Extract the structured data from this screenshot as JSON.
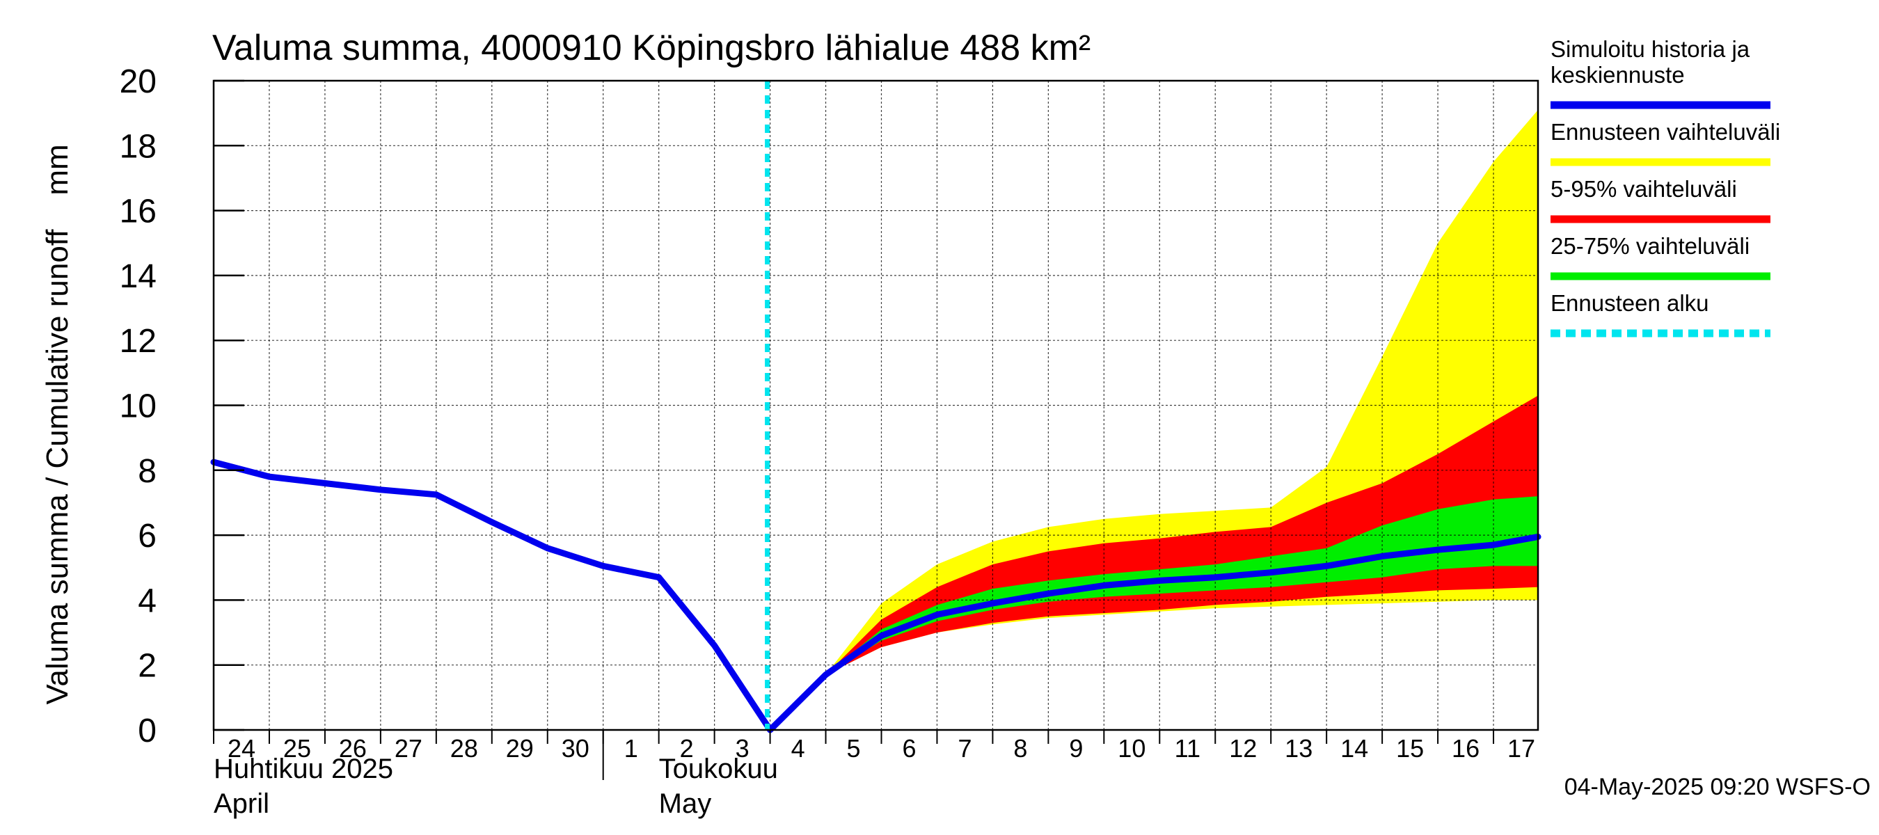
{
  "chart_data": {
    "type": "area",
    "title": "Valuma summa, 4000910 Köpingsbro lähialue 488 km²",
    "ylabel": "Valuma summa / Cumulative runoff    mm",
    "ylim": [
      0,
      20
    ],
    "yticks": [
      0,
      2,
      4,
      6,
      8,
      10,
      12,
      14,
      16,
      18,
      20
    ],
    "x_day_range": [
      0,
      23.8
    ],
    "x_ticks": [
      {
        "day": 0,
        "label": "24"
      },
      {
        "day": 1,
        "label": "25"
      },
      {
        "day": 2,
        "label": "26"
      },
      {
        "day": 3,
        "label": "27"
      },
      {
        "day": 4,
        "label": "28"
      },
      {
        "day": 5,
        "label": "29"
      },
      {
        "day": 6,
        "label": "30"
      },
      {
        "day": 7,
        "label": "1"
      },
      {
        "day": 8,
        "label": "2"
      },
      {
        "day": 9,
        "label": "3"
      },
      {
        "day": 10,
        "label": "4"
      },
      {
        "day": 11,
        "label": "5"
      },
      {
        "day": 12,
        "label": "6"
      },
      {
        "day": 13,
        "label": "7"
      },
      {
        "day": 14,
        "label": "8"
      },
      {
        "day": 15,
        "label": "9"
      },
      {
        "day": 16,
        "label": "10"
      },
      {
        "day": 17,
        "label": "11"
      },
      {
        "day": 18,
        "label": "12"
      },
      {
        "day": 19,
        "label": "13"
      },
      {
        "day": 20,
        "label": "14"
      },
      {
        "day": 21,
        "label": "15"
      },
      {
        "day": 22,
        "label": "16"
      },
      {
        "day": 23,
        "label": "17"
      }
    ],
    "month_labels": [
      {
        "day": 0,
        "line1": "Huhtikuu  2025",
        "line2": "April"
      },
      {
        "day": 8,
        "line1": "Toukokuu",
        "line2": "May"
      }
    ],
    "month_boundary_day": 7,
    "forecast_start_day": 10,
    "series": [
      {
        "name": "Ennusteen vaihteluväli",
        "kind": "band",
        "color": "#ffff00",
        "x": [
          10,
          11,
          12,
          13,
          14,
          15,
          16,
          17,
          18,
          19,
          20,
          21,
          22,
          23,
          23.8
        ],
        "upper": [
          0,
          1.7,
          3.9,
          5.1,
          5.8,
          6.25,
          6.5,
          6.65,
          6.75,
          6.85,
          8.1,
          11.5,
          15.0,
          17.5,
          19.1
        ],
        "lower": [
          0,
          1.7,
          2.55,
          3.0,
          3.25,
          3.45,
          3.55,
          3.65,
          3.75,
          3.8,
          3.85,
          3.9,
          3.95,
          4.0,
          4.0
        ]
      },
      {
        "name": "5-95% vaihteluväli",
        "kind": "band",
        "color": "#ff0000",
        "x": [
          10,
          11,
          12,
          13,
          14,
          15,
          16,
          17,
          18,
          19,
          20,
          21,
          22,
          23,
          23.8
        ],
        "upper": [
          0,
          1.7,
          3.4,
          4.4,
          5.1,
          5.5,
          5.75,
          5.9,
          6.1,
          6.25,
          7.0,
          7.6,
          8.5,
          9.5,
          10.3
        ],
        "lower": [
          0,
          1.7,
          2.55,
          3.0,
          3.3,
          3.5,
          3.6,
          3.7,
          3.85,
          3.95,
          4.1,
          4.2,
          4.3,
          4.35,
          4.4
        ]
      },
      {
        "name": "25-75% vaihteluväli",
        "kind": "band",
        "color": "#00ee00",
        "x": [
          10,
          11,
          12,
          13,
          14,
          15,
          16,
          17,
          18,
          19,
          20,
          21,
          22,
          23,
          23.8
        ],
        "upper": [
          0,
          1.7,
          3.1,
          3.85,
          4.35,
          4.6,
          4.8,
          4.95,
          5.1,
          5.35,
          5.6,
          6.3,
          6.8,
          7.1,
          7.2
        ],
        "lower": [
          0,
          1.7,
          2.75,
          3.35,
          3.7,
          3.95,
          4.1,
          4.2,
          4.3,
          4.4,
          4.55,
          4.7,
          4.95,
          5.05,
          5.05
        ]
      },
      {
        "name": "Simuloitu historia ja keskiennuste",
        "kind": "line",
        "color": "#0000ee",
        "x": [
          0,
          1,
          2,
          3,
          4,
          5,
          6,
          7,
          8,
          9,
          10,
          11,
          12,
          13,
          14,
          15,
          16,
          17,
          18,
          19,
          20,
          21,
          22,
          23,
          23.8
        ],
        "values": [
          8.25,
          7.8,
          7.6,
          7.4,
          7.25,
          6.4,
          5.6,
          5.05,
          4.7,
          2.6,
          0,
          1.7,
          2.9,
          3.55,
          3.9,
          4.2,
          4.45,
          4.6,
          4.7,
          4.85,
          5.05,
          5.35,
          5.55,
          5.7,
          5.95
        ]
      }
    ],
    "legend": {
      "placement": "right",
      "entries": [
        {
          "label": "Simuloitu historia ja keskiennuste",
          "lines": [
            "Simuloitu historia ja",
            "keskiennuste"
          ],
          "color": "#0000ee",
          "style": "solid"
        },
        {
          "label": "Ennusteen vaihteluväli",
          "lines": [
            "Ennusteen vaihteluväli"
          ],
          "color": "#ffff00",
          "style": "solid"
        },
        {
          "label": "5-95% vaihteluväli",
          "lines": [
            "5-95% vaihteluväli"
          ],
          "color": "#ff0000",
          "style": "solid"
        },
        {
          "label": "25-75% vaihteluväli",
          "lines": [
            "25-75% vaihteluväli"
          ],
          "color": "#00ee00",
          "style": "solid"
        },
        {
          "label": "Ennusteen alku",
          "lines": [
            "Ennusteen alku"
          ],
          "color": "#00e5ee",
          "style": "dashed"
        }
      ]
    },
    "footer": "04-May-2025 09:20 WSFS-O"
  }
}
